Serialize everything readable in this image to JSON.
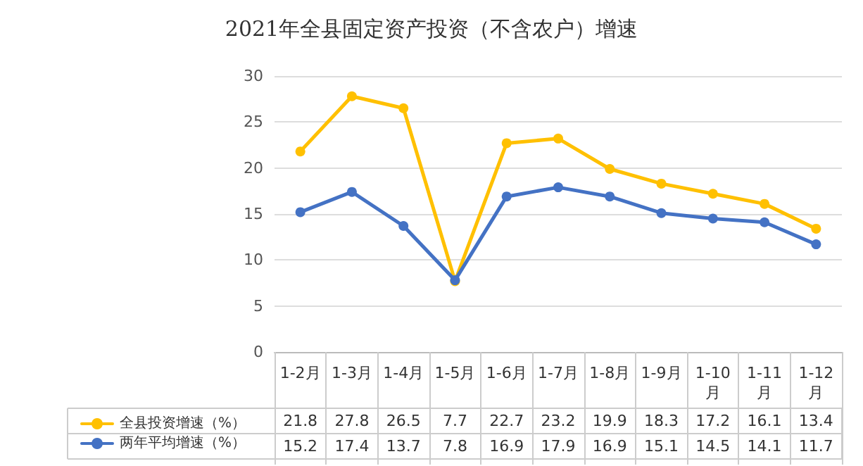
{
  "chart_data": {
    "type": "line",
    "title": "2021年全县固定资产投资（不含农户）增速",
    "categories": [
      "1-2月",
      "1-3月",
      "1-4月",
      "1-5月",
      "1-6月",
      "1-7月",
      "1-8月",
      "1-9月",
      "1-10月",
      "1-11月",
      "1-12月"
    ],
    "series": [
      {
        "name": "全县投资增速（%）",
        "color": "#ffc000",
        "values": [
          21.8,
          27.8,
          26.5,
          7.7,
          22.7,
          23.2,
          19.9,
          18.3,
          17.2,
          16.1,
          13.4
        ]
      },
      {
        "name": "两年平均增速（%）",
        "color": "#4472c4",
        "values": [
          15.2,
          17.4,
          13.7,
          7.8,
          16.9,
          17.9,
          16.9,
          15.1,
          14.5,
          14.1,
          11.7
        ]
      }
    ],
    "ylim": [
      0,
      30
    ],
    "yticks": [
      0,
      5,
      10,
      15,
      20,
      25,
      30
    ],
    "grid": "y",
    "legend": "bottom left",
    "marker": "circle",
    "line_style": "solid",
    "data_labels": true
  }
}
